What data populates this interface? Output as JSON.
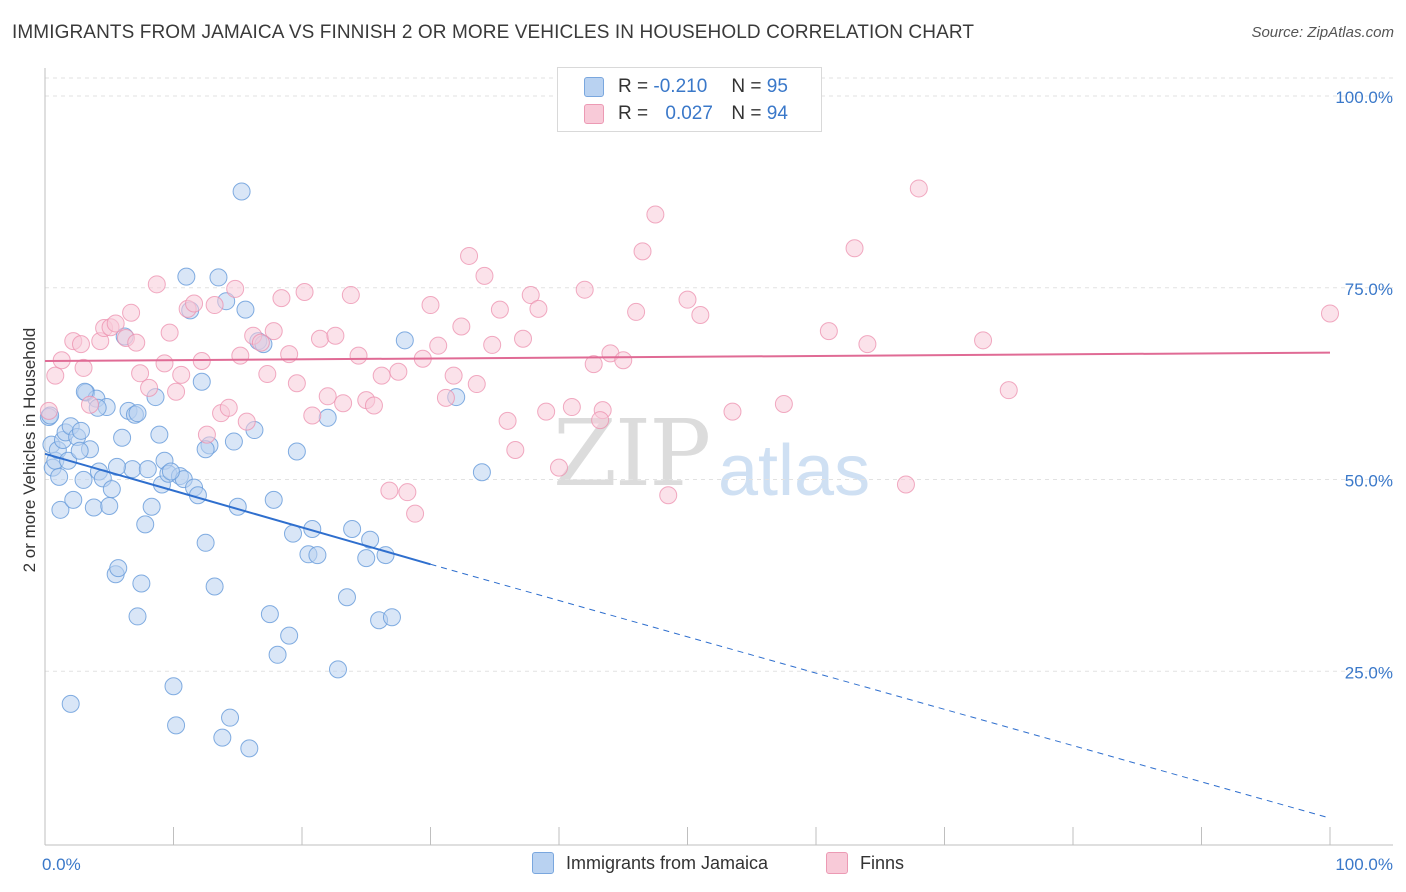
{
  "title": "IMMIGRANTS FROM JAMAICA VS FINNISH 2 OR MORE VEHICLES IN HOUSEHOLD CORRELATION CHART",
  "source": "Source: ZipAtlas.com",
  "watermark": {
    "zip": "ZIP",
    "atlas": "atlas"
  },
  "legend": {
    "rows": [
      {
        "r_label": "R =",
        "r_value": "-0.210",
        "n_label": "N =",
        "n_value": "95",
        "color": "#a9c8ef"
      },
      {
        "r_label": "R =",
        "r_value": "0.027",
        "n_label": "N =",
        "n_value": "94",
        "color": "#f5b8cb"
      }
    ]
  },
  "bottom_legend": {
    "series1": "Immigrants from Jamaica",
    "series2": "Finns"
  },
  "chart_data": {
    "type": "scatter",
    "title": "IMMIGRANTS FROM JAMAICA VS FINNISH 2 OR MORE VEHICLES IN HOUSEHOLD CORRELATION CHART",
    "xlabel": "",
    "ylabel": "2 or more Vehicles in Household",
    "xlim": [
      0,
      100
    ],
    "ylim": [
      0,
      100
    ],
    "x_tick_labels": [
      "0.0%",
      "100.0%"
    ],
    "y_tick_labels": [
      "100.0%",
      "75.0%",
      "50.0%",
      "25.0%"
    ],
    "y_ticks": [
      100,
      75,
      50,
      25
    ],
    "colors": {
      "jamaica": "#6c9fdc",
      "jamaica_fill": "#b9d2f1",
      "finns": "#ec8fad",
      "finns_fill": "#f8cad8",
      "jamaica_line": "#2f6fce",
      "finns_line": "#e06b95",
      "tick_text": "#3a78c9"
    },
    "series": [
      {
        "name": "Immigrants from Jamaica",
        "trend": {
          "x0": 0,
          "y0": 51.0,
          "x1": 30,
          "y1": 36.6,
          "dash_x1": 100,
          "dash_y1": 3.5
        },
        "points": [
          [
            0.3,
            55.8
          ],
          [
            0.5,
            52.2
          ],
          [
            0.6,
            49.2
          ],
          [
            0.8,
            50.1
          ],
          [
            1.0,
            51.5
          ],
          [
            1.2,
            43.7
          ],
          [
            1.4,
            52.8
          ],
          [
            1.6,
            53.8
          ],
          [
            1.8,
            50.1
          ],
          [
            2.0,
            54.6
          ],
          [
            2.2,
            45.0
          ],
          [
            2.5,
            53.2
          ],
          [
            2.8,
            54.0
          ],
          [
            3.0,
            47.6
          ],
          [
            3.2,
            59.0
          ],
          [
            3.5,
            51.6
          ],
          [
            3.8,
            44.0
          ],
          [
            4.0,
            58.2
          ],
          [
            4.2,
            48.7
          ],
          [
            4.5,
            47.8
          ],
          [
            4.8,
            57.1
          ],
          [
            5.0,
            44.2
          ],
          [
            5.2,
            46.4
          ],
          [
            5.5,
            35.3
          ],
          [
            5.7,
            36.1
          ],
          [
            6.0,
            53.1
          ],
          [
            6.2,
            66.3
          ],
          [
            6.5,
            56.6
          ],
          [
            6.8,
            49.0
          ],
          [
            7.0,
            56.1
          ],
          [
            7.2,
            29.8
          ],
          [
            7.5,
            34.1
          ],
          [
            7.8,
            41.8
          ],
          [
            8.0,
            49.0
          ],
          [
            8.3,
            44.1
          ],
          [
            8.6,
            58.4
          ],
          [
            8.9,
            53.5
          ],
          [
            9.1,
            47.0
          ],
          [
            9.3,
            50.1
          ],
          [
            9.6,
            48.4
          ],
          [
            10.0,
            20.7
          ],
          [
            10.2,
            15.6
          ],
          [
            10.5,
            48.1
          ],
          [
            10.8,
            47.7
          ],
          [
            11.0,
            74.1
          ],
          [
            11.3,
            69.7
          ],
          [
            11.6,
            46.6
          ],
          [
            11.9,
            45.6
          ],
          [
            12.2,
            60.4
          ],
          [
            12.5,
            39.4
          ],
          [
            12.8,
            52.1
          ],
          [
            13.2,
            33.7
          ],
          [
            13.5,
            74.0
          ],
          [
            13.8,
            14.0
          ],
          [
            14.1,
            70.9
          ],
          [
            14.4,
            16.6
          ],
          [
            14.7,
            52.6
          ],
          [
            15.0,
            44.1
          ],
          [
            15.3,
            85.2
          ],
          [
            15.6,
            69.8
          ],
          [
            15.9,
            12.6
          ],
          [
            16.3,
            54.1
          ],
          [
            16.6,
            65.7
          ],
          [
            17.0,
            65.3
          ],
          [
            17.5,
            30.1
          ],
          [
            17.8,
            45.0
          ],
          [
            18.1,
            24.8
          ],
          [
            19.0,
            27.3
          ],
          [
            19.3,
            40.6
          ],
          [
            19.6,
            51.3
          ],
          [
            20.5,
            37.9
          ],
          [
            20.8,
            41.2
          ],
          [
            21.2,
            37.8
          ],
          [
            22.0,
            55.7
          ],
          [
            22.8,
            22.9
          ],
          [
            23.5,
            32.3
          ],
          [
            23.9,
            41.2
          ],
          [
            25.0,
            37.4
          ],
          [
            25.3,
            39.8
          ],
          [
            26.0,
            29.3
          ],
          [
            26.5,
            37.8
          ],
          [
            27.0,
            29.7
          ],
          [
            28.0,
            65.8
          ],
          [
            32.0,
            58.4
          ],
          [
            34.0,
            48.6
          ],
          [
            0.4,
            56.0
          ],
          [
            1.1,
            48.0
          ],
          [
            2.7,
            51.4
          ],
          [
            4.1,
            57.0
          ],
          [
            3.1,
            59.1
          ],
          [
            2.0,
            18.4
          ],
          [
            5.6,
            49.3
          ],
          [
            7.2,
            56.3
          ],
          [
            9.8,
            48.7
          ],
          [
            12.5,
            51.6
          ]
        ]
      },
      {
        "name": "Finns",
        "trend": {
          "x0": 0,
          "y0": 63.1,
          "x1": 100,
          "y1": 64.2
        },
        "points": [
          [
            0.3,
            56.6
          ],
          [
            0.8,
            61.2
          ],
          [
            1.3,
            63.2
          ],
          [
            2.2,
            65.7
          ],
          [
            2.8,
            65.3
          ],
          [
            3.0,
            62.2
          ],
          [
            3.5,
            57.4
          ],
          [
            4.3,
            65.7
          ],
          [
            4.6,
            67.4
          ],
          [
            5.1,
            67.5
          ],
          [
            5.5,
            68.0
          ],
          [
            6.3,
            66.1
          ],
          [
            6.7,
            69.4
          ],
          [
            7.1,
            65.5
          ],
          [
            7.4,
            61.5
          ],
          [
            8.1,
            59.6
          ],
          [
            8.7,
            73.1
          ],
          [
            9.3,
            62.8
          ],
          [
            9.7,
            66.8
          ],
          [
            10.2,
            59.1
          ],
          [
            10.6,
            61.3
          ],
          [
            11.1,
            69.9
          ],
          [
            11.6,
            70.6
          ],
          [
            12.2,
            63.1
          ],
          [
            12.6,
            53.5
          ],
          [
            13.2,
            70.4
          ],
          [
            13.7,
            56.3
          ],
          [
            14.3,
            57.0
          ],
          [
            14.8,
            72.5
          ],
          [
            15.2,
            63.8
          ],
          [
            15.7,
            55.2
          ],
          [
            16.2,
            66.4
          ],
          [
            16.8,
            65.5
          ],
          [
            17.3,
            61.4
          ],
          [
            17.8,
            67.0
          ],
          [
            18.4,
            71.3
          ],
          [
            19.0,
            64.0
          ],
          [
            19.6,
            60.2
          ],
          [
            20.2,
            72.1
          ],
          [
            20.8,
            56.0
          ],
          [
            21.4,
            66.0
          ],
          [
            22.0,
            58.5
          ],
          [
            22.6,
            66.4
          ],
          [
            23.2,
            57.6
          ],
          [
            23.8,
            71.7
          ],
          [
            24.4,
            63.8
          ],
          [
            25.0,
            58.0
          ],
          [
            25.6,
            57.3
          ],
          [
            26.2,
            61.2
          ],
          [
            26.8,
            46.2
          ],
          [
            27.5,
            61.7
          ],
          [
            28.2,
            46.0
          ],
          [
            28.8,
            43.2
          ],
          [
            29.4,
            63.4
          ],
          [
            30.0,
            70.4
          ],
          [
            30.6,
            65.1
          ],
          [
            31.2,
            58.3
          ],
          [
            31.8,
            61.2
          ],
          [
            32.4,
            67.6
          ],
          [
            33.0,
            76.8
          ],
          [
            33.6,
            60.1
          ],
          [
            34.2,
            74.2
          ],
          [
            34.8,
            65.2
          ],
          [
            35.4,
            69.8
          ],
          [
            36.0,
            55.3
          ],
          [
            36.6,
            51.5
          ],
          [
            37.2,
            66.0
          ],
          [
            37.8,
            71.7
          ],
          [
            38.4,
            69.9
          ],
          [
            39.0,
            56.5
          ],
          [
            40.0,
            49.2
          ],
          [
            41.0,
            57.1
          ],
          [
            42.0,
            72.4
          ],
          [
            42.7,
            62.7
          ],
          [
            43.4,
            56.7
          ],
          [
            44.0,
            64.1
          ],
          [
            45.0,
            63.2
          ],
          [
            46.0,
            69.5
          ],
          [
            46.5,
            77.4
          ],
          [
            47.5,
            82.2
          ],
          [
            48.5,
            45.6
          ],
          [
            50.0,
            71.1
          ],
          [
            51.0,
            69.1
          ],
          [
            53.5,
            56.5
          ],
          [
            57.5,
            57.5
          ],
          [
            61.0,
            67.0
          ],
          [
            63.0,
            77.8
          ],
          [
            64.0,
            65.3
          ],
          [
            67.0,
            47.0
          ],
          [
            68.0,
            85.6
          ],
          [
            73.0,
            65.8
          ],
          [
            75.0,
            59.3
          ],
          [
            100.0,
            69.3
          ],
          [
            43.2,
            55.4
          ]
        ]
      }
    ]
  }
}
